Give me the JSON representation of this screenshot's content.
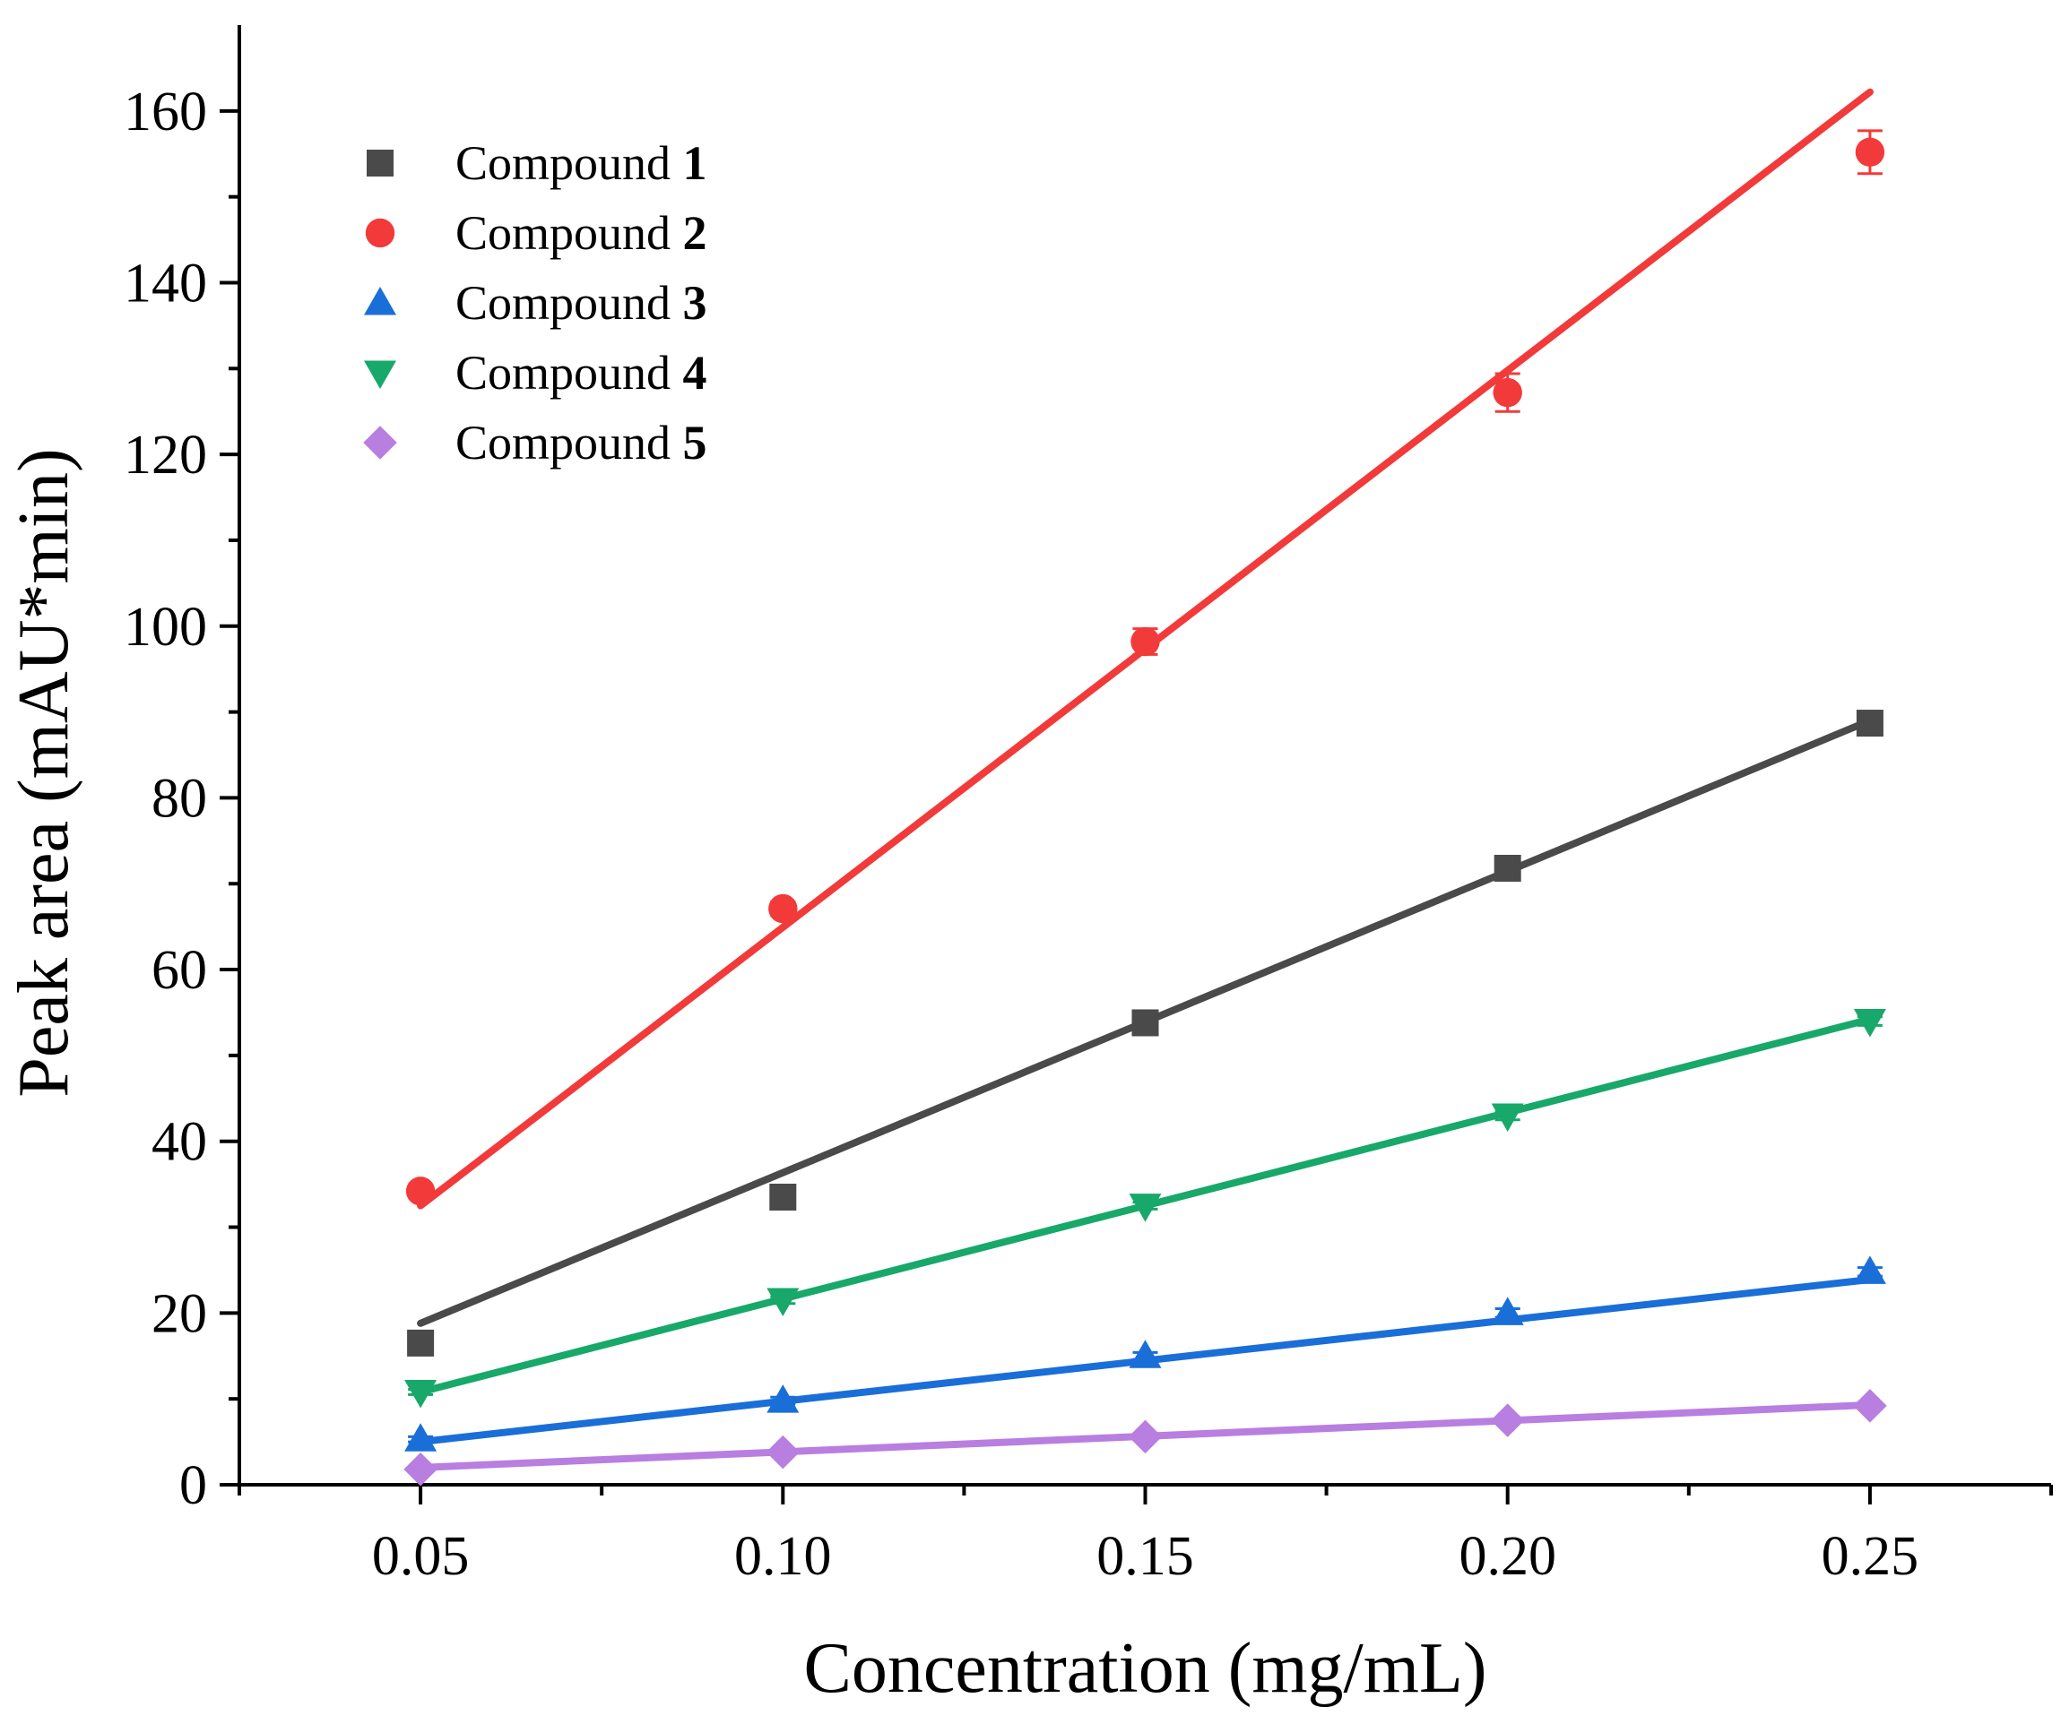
{
  "chart_data": {
    "type": "scatter",
    "xlabel": "Concentration (mg/mL)",
    "ylabel": "Peak area (mAU*min)",
    "xlim": [
      0.025,
      0.275
    ],
    "ylim": [
      0,
      170
    ],
    "x_ticks": [
      0.05,
      0.1,
      0.15,
      0.2,
      0.25
    ],
    "x_tick_labels": [
      "0.05",
      "0.10",
      "0.15",
      "0.20",
      "0.25"
    ],
    "y_ticks": [
      0,
      20,
      40,
      60,
      80,
      100,
      120,
      140,
      160
    ],
    "y_tick_labels": [
      "0",
      "20",
      "40",
      "60",
      "80",
      "100",
      "120",
      "140",
      "160"
    ],
    "grid": false,
    "legend_position": "top-left",
    "x": [
      0.05,
      0.1,
      0.15,
      0.2,
      0.25
    ],
    "series": [
      {
        "name": "Compound",
        "number": "1",
        "marker": "square",
        "color": "#4a4a4a",
        "values": [
          16.5,
          33.5,
          53.8,
          71.8,
          88.7
        ],
        "errors": [
          0.6,
          0.6,
          0.5,
          0.6,
          0.5
        ],
        "fit": [
          18.8,
          89.0
        ]
      },
      {
        "name": "Compound",
        "number": "2",
        "marker": "circle",
        "color": "#f23a3a",
        "values": [
          34.2,
          67.1,
          98.2,
          127.2,
          155.2
        ],
        "errors": [
          0.5,
          0.8,
          1.5,
          2.2,
          2.5
        ],
        "fit": [
          32.5,
          162.2
        ]
      },
      {
        "name": "Compound",
        "number": "3",
        "marker": "triangle-up",
        "color": "#1a6ed8",
        "values": [
          5.3,
          9.8,
          15.0,
          20.0,
          24.8
        ],
        "errors": [
          0.3,
          0.4,
          0.4,
          0.5,
          0.5
        ],
        "fit": [
          5.0,
          23.9
        ]
      },
      {
        "name": "Compound",
        "number": "4",
        "marker": "triangle-down",
        "color": "#17a86a",
        "values": [
          10.8,
          21.5,
          32.5,
          43.0,
          54.0
        ],
        "errors": [
          0.3,
          0.4,
          0.4,
          0.5,
          0.5
        ],
        "fit": [
          10.8,
          54.2
        ]
      },
      {
        "name": "Compound",
        "number": "5",
        "marker": "diamond",
        "color": "#b87ee0",
        "values": [
          1.8,
          3.8,
          5.6,
          7.5,
          9.2
        ],
        "errors": [
          0.2,
          0.2,
          0.2,
          0.2,
          0.2
        ],
        "fit": [
          2.0,
          9.3
        ]
      }
    ]
  }
}
